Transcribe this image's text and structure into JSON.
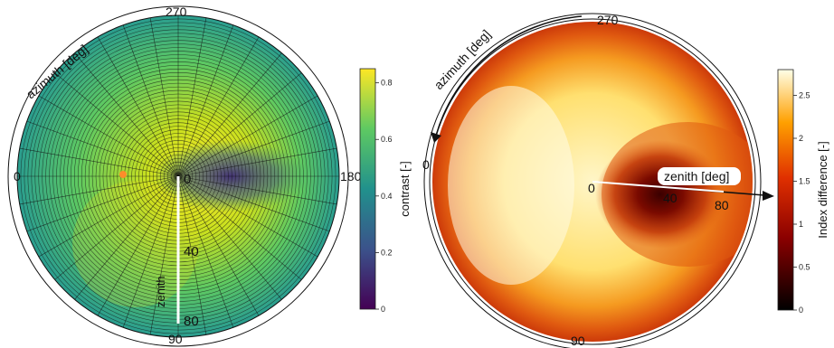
{
  "chart_data": [
    {
      "type": "heatmap",
      "projection": "polar",
      "azimuth_label": "azimuth [deg]",
      "zenith_label": "zenith",
      "azimuth_ticks": [
        "0",
        "90",
        "180",
        "270"
      ],
      "zenith_ticks": [
        "0",
        "40",
        "80"
      ],
      "zenith_range": [
        0,
        90
      ],
      "colorbar": {
        "label": "contrast [-]",
        "ticks": [
          "0",
          "0.2",
          "0.4",
          "0.6",
          "0.8"
        ],
        "range": [
          0,
          0.85
        ],
        "colormap": "viridis"
      },
      "grid": true
    },
    {
      "type": "heatmap",
      "projection": "polar",
      "azimuth_label": "azimuth [deg]",
      "zenith_label": "zenith [deg]",
      "azimuth_ticks": [
        "0",
        "90",
        "270"
      ],
      "zenith_ticks": [
        "0",
        "40",
        "80"
      ],
      "zenith_range": [
        0,
        90
      ],
      "colorbar": {
        "label": "Index difference [-]",
        "ticks": [
          "0",
          "0.5",
          "1",
          "1.5",
          "2",
          "2.5"
        ],
        "range": [
          0,
          2.8
        ],
        "colormap": "hot"
      },
      "grid": false
    }
  ]
}
